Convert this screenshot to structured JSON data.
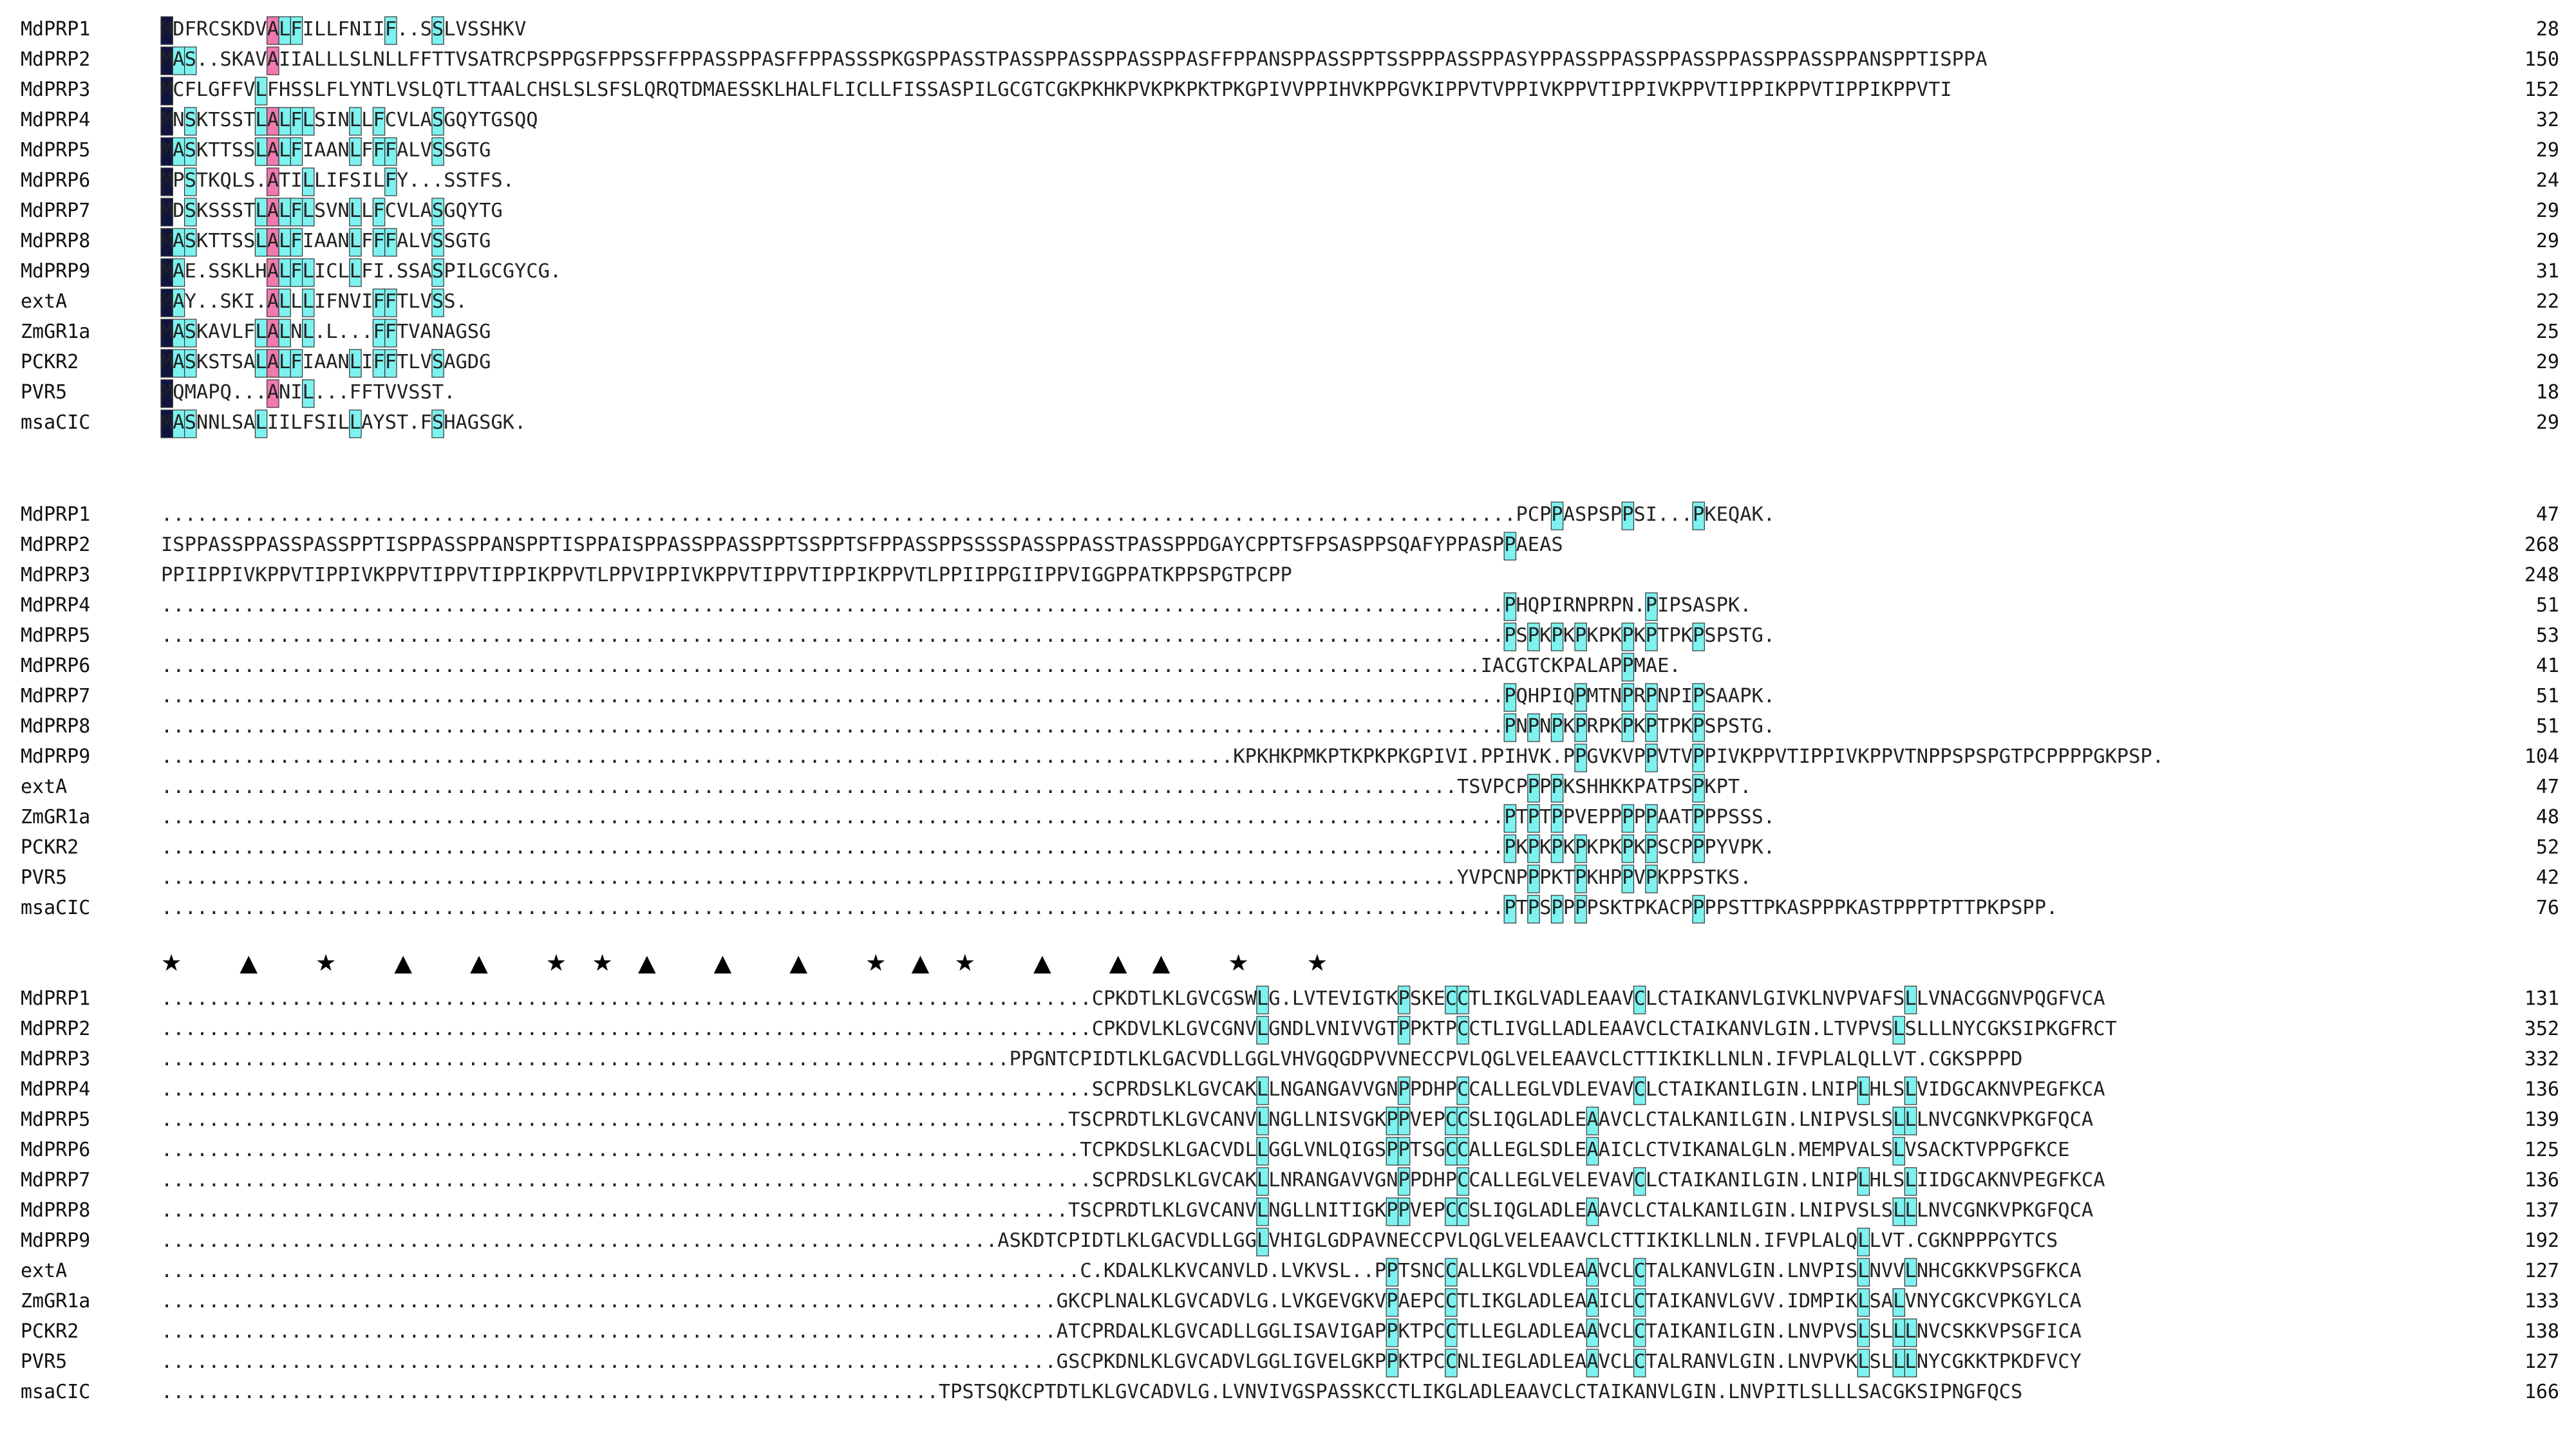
{
  "colors": {
    "identical": "#10153f",
    "high": "#f07aad",
    "medium": "#7df2ef",
    "box": "#333333",
    "text": "#222222",
    "text_on_dark": "#ffffff"
  },
  "blocks": [
    {
      "rows": [
        {
          "name": "MdPRP1",
          "seq": "MDFRCSKDVALFILLFNIIF..SSLVSSHKV",
          "end": "28"
        },
        {
          "name": "MdPRP2",
          "seq": "MAS..SKAVAIIALLLSLNLLFFTTVSATRCPSPPGSFPPSSFFPPASSPPASFFPPASSSPKGSPPASSTPASSPPASSPPASSPPASFFPPANSPPASSPPTSSPPPASSPPASYPPASSPPASSPPASSPPASSPPASSPPANSPPTISPPA",
          "end": "150"
        },
        {
          "name": "MdPRP3",
          "seq": "MCFLGFFVLFHSSLFLYNTLVSLQTLTTAALCHSLSLSFSLQRQTDMAESSKLHALFLICLLFISSASPILGCGTCGKPKHKPVKPKPKTPKGPIVVPPIHVKPPGVKIPPVTVPPIVKPPVTIPPIVKPPVTIPPIKPPVTIPPIKPPVTI",
          "end": "152"
        },
        {
          "name": "MdPRP4",
          "seq": "MNSKTSSTLALFLSINLLFCVLASGQYTGSQQ",
          "end": "32"
        },
        {
          "name": "MdPRP5",
          "seq": "MASKTTSSLALFIAANLFFFALVSSGTG",
          "end": "29"
        },
        {
          "name": "MdPRP6",
          "seq": "MPSTKQLS.ATILLIFSILFY...SSTFS.",
          "end": "24"
        },
        {
          "name": "MdPRP7",
          "seq": "MDSKSSSTLALFLSVNLLFCVLASGQYTG",
          "end": "29"
        },
        {
          "name": "MdPRP8",
          "seq": "MASKTTSSLALFIAANLFFFALVSSGTG",
          "end": "29"
        },
        {
          "name": "MdPRP9",
          "seq": "MAE.SSKLHALFLICLLFI.SSASPILGCGYCG.",
          "end": "31"
        },
        {
          "name": "extA",
          "seq": "MAY..SKI.ALLLIFNVIFFTLVSS.",
          "end": "22"
        },
        {
          "name": "ZmGR1a",
          "seq": "MASKAVLFLALNL.L...FFTVANAGSG",
          "end": "25"
        },
        {
          "name": "PCKR2",
          "seq": "MASKSTSALALFIAANLIFFTLVSAGDG",
          "end": "29"
        },
        {
          "name": "PVR5",
          "seq": "MQMAPQ...ANIL...FFTVVSST.",
          "end": "18"
        },
        {
          "name": "msaCIC",
          "seq": "MASNNLSALIILFSILLAYST.FSHAGSGK.",
          "end": "29"
        }
      ]
    },
    {
      "rows": [
        {
          "name": "MdPRP1",
          "seq": "...................................................................................................................PCPPASPSPPSI...PKEQAK.",
          "end": "47"
        },
        {
          "name": "MdPRP2",
          "seq": "ISPPASSPPASSPASSPPTISPPASSPPANSPPTISPPAISPPASSPPASSPPTSSPPTSFPPASSPPSSSSPASSPPASSTPASSPPDGAYCPPTSFPSASPPSQAFYPPASPPAEAS",
          "end": "268"
        },
        {
          "name": "MdPRP3",
          "seq": "PPIIPPIVKPPVTIPPIVKPPVTIPPVTIPPIKPPVTLPPVIPPIVKPPVTIPPVTIPPIKPPVTLPPIIPPGIIPPVIGGPPATKPPSPGTPCPP",
          "end": "248"
        },
        {
          "name": "MdPRP4",
          "seq": "..................................................................................................................PHQPIRNPRPN.PIPSASPK.",
          "end": "51"
        },
        {
          "name": "MdPRP5",
          "seq": "..................................................................................................................PSPKPKPKPKPKPTPKPSPSTG.",
          "end": "53"
        },
        {
          "name": "MdPRP6",
          "seq": "................................................................................................................IACGTCKPALAPPMAE.",
          "end": "41"
        },
        {
          "name": "MdPRP7",
          "seq": "..................................................................................................................PQHPIQPMTNPRPNPIPSAAPK.",
          "end": "51"
        },
        {
          "name": "MdPRP8",
          "seq": "..................................................................................................................PNPNPKPRPKPKPTPKPSPSTG.",
          "end": "51"
        },
        {
          "name": "MdPRP9",
          "seq": "...........................................................................................KPKHKPMKPTKPKPKGPIVI.PPIHVK.PPGVKVPPVTVPPIVKPPVTIPPIVKPPVTNPPSPSPGTPCPPPPGKPSP.",
          "end": "104"
        },
        {
          "name": "extA",
          "seq": "..............................................................................................................TSVPCPPPPKSHHKKPATPSPKPT.",
          "end": "47"
        },
        {
          "name": "ZmGR1a",
          "seq": "..................................................................................................................PTPTPPVEPPPPPAATPPPSSS.",
          "end": "48"
        },
        {
          "name": "PCKR2",
          "seq": "..................................................................................................................PKPKPKPKPKPKPSCPPPYVPK.",
          "end": "52"
        },
        {
          "name": "PVR5",
          "seq": "..............................................................................................................YVPCNPPPKTPKHPPVPKPPSTKS.",
          "end": "42"
        },
        {
          "name": "msaCIC",
          "seq": "..................................................................................................................PTPSPPPPSKTPKACPPPPSTTPKASPPPKASTPPPTPTTPKPSPP.",
          "end": "76"
        }
      ]
    },
    {
      "conservation": "         *  ^   *  ^  ^                 **^  ^  ^  *^*      ^                  ^^  *            *  ",
      "rows": [
        {
          "name": "MdPRP1",
          "seq": "...............................................................................CPKDTLKLGVCGSWLG.LVTEVIGTKPSKECCTLIKGLVADLEAAVCLCTAIKANVLGIVKLNVPVAFSLLVNACGGNVPQGFVCA",
          "end": "131"
        },
        {
          "name": "MdPRP2",
          "seq": "...............................................................................CPKDVLKLGVCGNVLGNDLVNIVVGTPPKTPCCTLIVGLLADLEAAVCLCTAIKANVLGIN.LTVPVSLSLLLNYCGKSIPKGFRCT",
          "end": "352"
        },
        {
          "name": "MdPRP3",
          "seq": "........................................................................PPGNTCPIDTLKLGACVDLLGGLVHVGQGDPVVNECCPVLQGLVELEAAVCLCTTIKIKLLNLN.IFVPLALQLLVT.CGKSPPPD",
          "end": "332"
        },
        {
          "name": "MdPRP4",
          "seq": "...............................................................................SCPRDSLKLGVCAKLLNGANGAVVGNPPDHPCCALLEGLVDLEVAVCLCTAIKANILGIN.LNIPLHLSLVIDGCAKNVPEGFKCA",
          "end": "136"
        },
        {
          "name": "MdPRP5",
          "seq": ".............................................................................TSCPRDTLKLGVCANVLNGLLNISVGKPPVEPCCSLIQGLADLEAAVCLCTALKANILGIN.LNIPVSLSLLLNVCGNKVPKGFQCA",
          "end": "139"
        },
        {
          "name": "MdPRP6",
          "seq": "..............................................................................TCPKDSLKLGACVDLLGGLVNLQIGSPPTSGCCALLEGLSDLEAAICLCTVIKANALGLN.MEMPVALSLVSACKTVPPGFKCE",
          "end": "125"
        },
        {
          "name": "MdPRP7",
          "seq": "...............................................................................SCPRDSLKLGVCAKLLNRANGAVVGNPPDHPCCALLEGLVELEVAVCLCTAIKANILGIN.LNIPLHLSLIIDGCAKNVPEGFKCA",
          "end": "136"
        },
        {
          "name": "MdPRP8",
          "seq": ".............................................................................TSCPRDTLKLGVCANVLNGLLNITIGKPPVEPCCSLIQGLADLEAAVCLCTALKANILGIN.LNIPVSLSLLLNVCGNKVPKGFQCA",
          "end": "137"
        },
        {
          "name": "MdPRP9",
          "seq": ".......................................................................ASKDTCPIDTLKLGACVDLLGGLVHIGLGDPAVNECCPVLQGLVELEAAVCLCTTIKIKLLNLN.IFVPLALQLLVT.CGKNPPPGYTCS",
          "end": "192"
        },
        {
          "name": "extA",
          "seq": "..............................................................................C.KDALKLKVCANVLD.LVKVSL..PPTSNCCALLKGLVDLEAAVCLCTALKANVLGIN.LNVPISLNVVLNHCGKKVPSGFKCA",
          "end": "127"
        },
        {
          "name": "ZmGR1a",
          "seq": "............................................................................GKCPLNALKLGVCADVLG.LVKGEVGKVPAEPCCTLIKGLADLEAAICLCTAIKANVLGVV.IDMPIKLSALVNYCGKCVPKGYLCA",
          "end": "133"
        },
        {
          "name": "PCKR2",
          "seq": "............................................................................ATCPRDALKLGVCADLLGGLISAVIGAPPKTPCCTLLEGLADLEAAVCLCTAIKANILGIN.LNVPVSLSLLLNVCSKKVPSGFICA",
          "end": "138"
        },
        {
          "name": "PVR5",
          "seq": "............................................................................GSCPKDNLKLGVCADVLGGLIGVELGKPPKTPCCNLIEGLADLEAAVCLCTALRANVLGIN.LNVPVKLSLLLNYCGKKTPKDFVCY",
          "end": "127"
        },
        {
          "name": "msaCIC",
          "seq": "..................................................................TPSTSQKCPTDTLKLGVCADVLG.LVNVIVGSPASSKCCTLIKGLADLEAAVCLCTAIKANVLGIN.LNVPITLSLLLSACGKSIPNGFQCS",
          "end": "166"
        }
      ]
    }
  ]
}
